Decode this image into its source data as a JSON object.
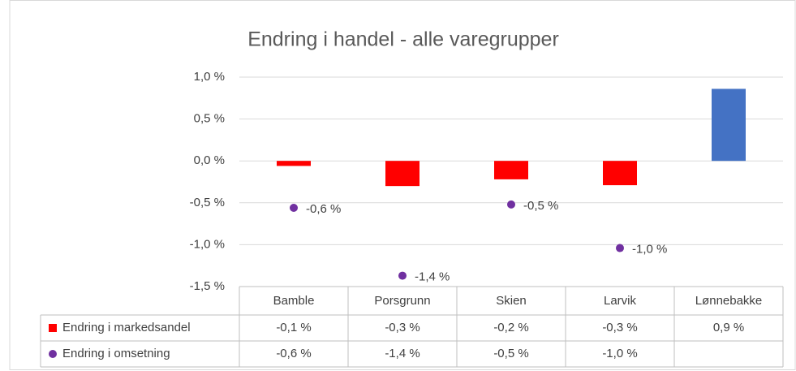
{
  "chart_data": {
    "type": "bar",
    "title": "Endring i handel - alle varegrupper",
    "categories": [
      "Bamble",
      "Porsgrunn",
      "Skien",
      "Larvik",
      "Lønnebakke"
    ],
    "series": [
      {
        "name": "Endring i markedsandel",
        "type": "bar",
        "color": "#ff0000",
        "colors": [
          "#ff0000",
          "#ff0000",
          "#ff0000",
          "#ff0000",
          "#4472c4"
        ],
        "values": [
          -0.06,
          -0.3,
          -0.22,
          -0.29,
          0.86
        ],
        "value_labels": [
          "-0,1 %",
          "-0,3 %",
          "-0,2 %",
          "-0,3 %",
          "0,9 %"
        ]
      },
      {
        "name": "Endring i omsetning",
        "type": "scatter",
        "color": "#7030a0",
        "values": [
          -0.56,
          -1.37,
          -0.52,
          -1.04,
          null
        ],
        "value_labels": [
          "-0,6 %",
          "-1,4 %",
          "-0,5 %",
          "-1,0 %",
          null
        ]
      }
    ],
    "ylim": [
      -1.5,
      1.0
    ],
    "yticks": [
      {
        "value": 1.0,
        "label": "1,0 %"
      },
      {
        "value": 0.5,
        "label": "0,5 %"
      },
      {
        "value": 0,
        "label": "0,0 %"
      },
      {
        "value": -0.5,
        "label": "-0,5 %"
      },
      {
        "value": -1.0,
        "label": "-1,0 %"
      },
      {
        "value": -1.5,
        "label": "-1,5 %"
      }
    ],
    "grid": true,
    "data_table": true
  }
}
